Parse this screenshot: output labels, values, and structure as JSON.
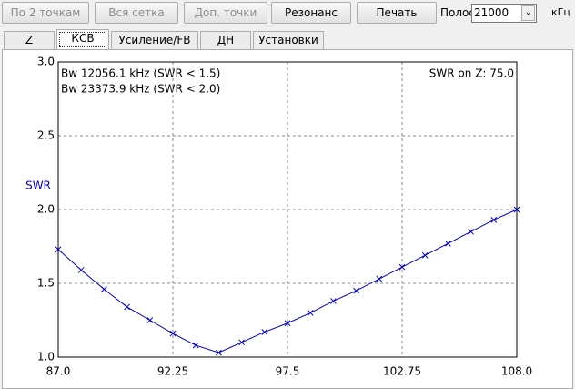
{
  "toolbar": {
    "buttons": [
      "По 2 точкам",
      "Вся сетка",
      "Доп. точки",
      "Резонанс",
      "Печать"
    ],
    "band_label": "Полоса",
    "band_value": "21000",
    "band_unit": "кГц"
  },
  "tabs": [
    "Z",
    "КСВ",
    "Усиление/FB",
    "ДН",
    "Установки"
  ],
  "chart_data": {
    "type": "line",
    "ylabel": "SWR",
    "annotations": [
      "Bw 12056.1 kHz (SWR < 1.5)",
      "Bw 23373.9 kHz (SWR < 2.0)",
      "SWR on Z: 75.0"
    ],
    "x": [
      87,
      88.05,
      89.1,
      90.15,
      91.2,
      92.25,
      93.3,
      94.35,
      95.4,
      96.45,
      97.5,
      98.55,
      99.6,
      100.65,
      101.7,
      102.75,
      103.8,
      104.85,
      105.9,
      106.95,
      108
    ],
    "series": [
      {
        "name": "SWR",
        "color": "#0000cc",
        "values": [
          1.73,
          1.59,
          1.46,
          1.34,
          1.25,
          1.16,
          1.08,
          1.03,
          1.1,
          1.17,
          1.23,
          1.3,
          1.38,
          1.45,
          1.53,
          1.61,
          1.69,
          1.77,
          1.85,
          1.93,
          2.0
        ]
      }
    ],
    "xlim": [
      87,
      108
    ],
    "ylim": [
      1,
      3
    ],
    "xticks": [
      {
        "value": 87,
        "label": "87.0"
      },
      92.25,
      97.5,
      102.75,
      {
        "value": 108,
        "label": "108.0"
      }
    ],
    "yticks": [
      {
        "value": 1,
        "label": "1.0"
      },
      {
        "value": 1.5,
        "label": "1.5"
      },
      {
        "value": 2,
        "label": "2.0"
      },
      {
        "value": 2.5,
        "label": "2.5"
      },
      {
        "value": 3,
        "label": "3.0"
      }
    ],
    "grid": true
  }
}
